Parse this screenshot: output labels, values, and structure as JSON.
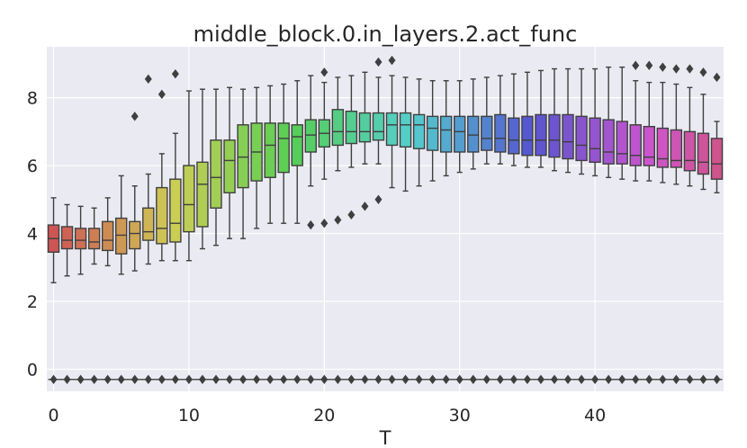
{
  "chart_data": {
    "type": "box",
    "title": "middle_block.0.in_layers.2.act_func",
    "xlabel": "T",
    "ylabel": "",
    "xlim": [
      -0.5,
      49.5
    ],
    "ylim": [
      -0.65,
      9.5
    ],
    "xticks": [
      0,
      10,
      20,
      30,
      40
    ],
    "yticks": [
      0,
      2,
      4,
      6,
      8
    ],
    "grid": true,
    "background": "#eaeaf2",
    "outlier_bottom": -0.3,
    "boxes": [
      {
        "t": 0,
        "q1": 3.45,
        "med": 3.85,
        "q3": 4.25,
        "wlo": 2.55,
        "whi": 5.05,
        "high": []
      },
      {
        "t": 1,
        "q1": 3.55,
        "med": 3.8,
        "q3": 4.2,
        "wlo": 2.75,
        "whi": 4.85,
        "high": []
      },
      {
        "t": 2,
        "q1": 3.55,
        "med": 3.8,
        "q3": 4.15,
        "wlo": 2.8,
        "whi": 4.8,
        "high": []
      },
      {
        "t": 3,
        "q1": 3.55,
        "med": 3.75,
        "q3": 4.15,
        "wlo": 3.1,
        "whi": 4.75,
        "high": []
      },
      {
        "t": 4,
        "q1": 3.5,
        "med": 3.8,
        "q3": 4.35,
        "wlo": 3.05,
        "whi": 5.05,
        "high": []
      },
      {
        "t": 5,
        "q1": 3.4,
        "med": 3.95,
        "q3": 4.45,
        "wlo": 2.8,
        "whi": 5.7,
        "high": []
      },
      {
        "t": 6,
        "q1": 3.55,
        "med": 4.0,
        "q3": 4.35,
        "wlo": 2.9,
        "whi": 5.4,
        "high": [
          7.45
        ]
      },
      {
        "t": 7,
        "q1": 3.8,
        "med": 4.05,
        "q3": 4.75,
        "wlo": 3.1,
        "whi": 5.75,
        "high": [
          8.55
        ]
      },
      {
        "t": 8,
        "q1": 3.7,
        "med": 4.15,
        "q3": 5.35,
        "wlo": 3.2,
        "whi": 6.35,
        "high": [
          8.1
        ]
      },
      {
        "t": 9,
        "q1": 3.75,
        "med": 4.3,
        "q3": 5.6,
        "wlo": 3.2,
        "whi": 6.95,
        "high": [
          8.7
        ]
      },
      {
        "t": 10,
        "q1": 4.05,
        "med": 4.85,
        "q3": 6.0,
        "wlo": 3.2,
        "whi": 8.2,
        "high": []
      },
      {
        "t": 11,
        "q1": 4.2,
        "med": 5.45,
        "q3": 6.1,
        "wlo": 3.55,
        "whi": 8.25,
        "high": []
      },
      {
        "t": 12,
        "q1": 4.75,
        "med": 5.65,
        "q3": 6.75,
        "wlo": 3.65,
        "whi": 8.25,
        "high": []
      },
      {
        "t": 13,
        "q1": 5.2,
        "med": 6.15,
        "q3": 6.75,
        "wlo": 3.85,
        "whi": 8.3,
        "high": []
      },
      {
        "t": 14,
        "q1": 5.35,
        "med": 6.25,
        "q3": 7.2,
        "wlo": 3.85,
        "whi": 8.25,
        "high": []
      },
      {
        "t": 15,
        "q1": 5.55,
        "med": 6.4,
        "q3": 7.25,
        "wlo": 4.15,
        "whi": 8.3,
        "high": []
      },
      {
        "t": 16,
        "q1": 5.65,
        "med": 6.6,
        "q3": 7.25,
        "wlo": 4.3,
        "whi": 8.35,
        "high": []
      },
      {
        "t": 17,
        "q1": 5.8,
        "med": 6.8,
        "q3": 7.25,
        "wlo": 4.3,
        "whi": 8.4,
        "high": []
      },
      {
        "t": 18,
        "q1": 6.0,
        "med": 6.85,
        "q3": 7.2,
        "wlo": 4.3,
        "whi": 8.5,
        "high": []
      },
      {
        "t": 19,
        "q1": 6.4,
        "med": 6.9,
        "q3": 7.35,
        "wlo": 5.4,
        "whi": 8.65,
        "high": [],
        "low": [
          4.25
        ]
      },
      {
        "t": 20,
        "q1": 6.55,
        "med": 6.95,
        "q3": 7.35,
        "wlo": 5.6,
        "whi": 8.45,
        "high": [
          8.75
        ],
        "low": [
          4.3
        ]
      },
      {
        "t": 21,
        "q1": 6.6,
        "med": 7.0,
        "q3": 7.65,
        "wlo": 5.85,
        "whi": 8.6,
        "high": [],
        "low": [
          4.4
        ]
      },
      {
        "t": 22,
        "q1": 6.65,
        "med": 7.0,
        "q3": 7.6,
        "wlo": 5.95,
        "whi": 8.65,
        "high": [],
        "low": [
          4.55
        ]
      },
      {
        "t": 23,
        "q1": 6.7,
        "med": 7.0,
        "q3": 7.55,
        "wlo": 6.05,
        "whi": 8.75,
        "high": [],
        "low": [
          4.8
        ]
      },
      {
        "t": 24,
        "q1": 6.75,
        "med": 7.0,
        "q3": 7.55,
        "wlo": 6.05,
        "whi": 8.6,
        "high": [
          9.05
        ],
        "low": [
          5.0
        ]
      },
      {
        "t": 25,
        "q1": 6.6,
        "med": 7.2,
        "q3": 7.55,
        "wlo": 5.35,
        "whi": 8.65,
        "high": [
          9.1
        ]
      },
      {
        "t": 26,
        "q1": 6.55,
        "med": 7.2,
        "q3": 7.55,
        "wlo": 5.25,
        "whi": 8.6,
        "high": []
      },
      {
        "t": 27,
        "q1": 6.5,
        "med": 7.2,
        "q3": 7.5,
        "wlo": 5.4,
        "whi": 8.55,
        "high": []
      },
      {
        "t": 28,
        "q1": 6.45,
        "med": 7.1,
        "q3": 7.45,
        "wlo": 5.55,
        "whi": 8.5,
        "high": []
      },
      {
        "t": 29,
        "q1": 6.4,
        "med": 7.05,
        "q3": 7.45,
        "wlo": 5.7,
        "whi": 8.5,
        "high": []
      },
      {
        "t": 30,
        "q1": 6.4,
        "med": 7.0,
        "q3": 7.45,
        "wlo": 5.8,
        "whi": 8.5,
        "high": []
      },
      {
        "t": 31,
        "q1": 6.4,
        "med": 6.9,
        "q3": 7.45,
        "wlo": 5.9,
        "whi": 8.55,
        "high": []
      },
      {
        "t": 32,
        "q1": 6.45,
        "med": 6.8,
        "q3": 7.45,
        "wlo": 6.05,
        "whi": 8.6,
        "high": []
      },
      {
        "t": 33,
        "q1": 6.4,
        "med": 6.8,
        "q3": 7.5,
        "wlo": 6.05,
        "whi": 8.65,
        "high": []
      },
      {
        "t": 34,
        "q1": 6.35,
        "med": 6.75,
        "q3": 7.4,
        "wlo": 6.0,
        "whi": 8.7,
        "high": []
      },
      {
        "t": 35,
        "q1": 6.3,
        "med": 6.75,
        "q3": 7.45,
        "wlo": 5.95,
        "whi": 8.75,
        "high": []
      },
      {
        "t": 36,
        "q1": 6.3,
        "med": 6.75,
        "q3": 7.5,
        "wlo": 5.95,
        "whi": 8.8,
        "high": []
      },
      {
        "t": 37,
        "q1": 6.25,
        "med": 6.75,
        "q3": 7.5,
        "wlo": 5.85,
        "whi": 8.85,
        "high": []
      },
      {
        "t": 38,
        "q1": 6.2,
        "med": 6.7,
        "q3": 7.5,
        "wlo": 5.8,
        "whi": 8.85,
        "high": []
      },
      {
        "t": 39,
        "q1": 6.15,
        "med": 6.6,
        "q3": 7.45,
        "wlo": 5.75,
        "whi": 8.85,
        "high": []
      },
      {
        "t": 40,
        "q1": 6.1,
        "med": 6.5,
        "q3": 7.4,
        "wlo": 5.7,
        "whi": 8.85,
        "high": []
      },
      {
        "t": 41,
        "q1": 6.05,
        "med": 6.4,
        "q3": 7.35,
        "wlo": 5.65,
        "whi": 8.9,
        "high": []
      },
      {
        "t": 42,
        "q1": 6.05,
        "med": 6.35,
        "q3": 7.3,
        "wlo": 5.6,
        "whi": 8.9,
        "high": []
      },
      {
        "t": 43,
        "q1": 6.0,
        "med": 6.3,
        "q3": 7.2,
        "wlo": 5.55,
        "whi": 8.5,
        "high": [
          8.95
        ]
      },
      {
        "t": 44,
        "q1": 6.0,
        "med": 6.25,
        "q3": 7.15,
        "wlo": 5.55,
        "whi": 8.45,
        "high": [
          8.95
        ]
      },
      {
        "t": 45,
        "q1": 5.95,
        "med": 6.2,
        "q3": 7.1,
        "wlo": 5.5,
        "whi": 8.45,
        "high": [
          8.9
        ]
      },
      {
        "t": 46,
        "q1": 5.95,
        "med": 6.15,
        "q3": 7.05,
        "wlo": 5.45,
        "whi": 8.4,
        "high": [
          8.85
        ]
      },
      {
        "t": 47,
        "q1": 5.85,
        "med": 6.15,
        "q3": 7.0,
        "wlo": 5.4,
        "whi": 8.3,
        "high": [
          8.85
        ]
      },
      {
        "t": 48,
        "q1": 5.75,
        "med": 6.1,
        "q3": 6.95,
        "wlo": 5.3,
        "whi": 8.1,
        "high": [
          8.75
        ]
      },
      {
        "t": 49,
        "q1": 5.6,
        "med": 6.05,
        "q3": 6.8,
        "wlo": 5.2,
        "whi": 7.3,
        "high": [
          8.6
        ]
      }
    ]
  }
}
